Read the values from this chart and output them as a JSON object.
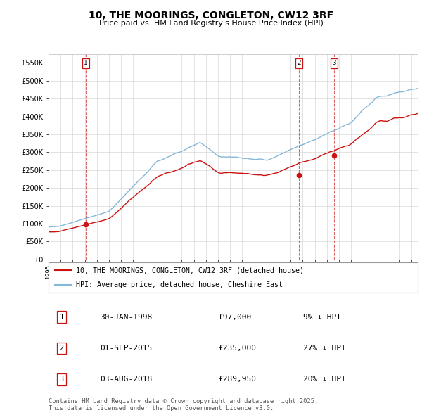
{
  "title": "10, THE MOORINGS, CONGLETON, CW12 3RF",
  "subtitle": "Price paid vs. HM Land Registry's House Price Index (HPI)",
  "ylim": [
    0,
    575000
  ],
  "yticks": [
    0,
    50000,
    100000,
    150000,
    200000,
    250000,
    300000,
    350000,
    400000,
    450000,
    500000,
    550000
  ],
  "ytick_labels": [
    "£0",
    "£50K",
    "£100K",
    "£150K",
    "£200K",
    "£250K",
    "£300K",
    "£350K",
    "£400K",
    "£450K",
    "£500K",
    "£550K"
  ],
  "xlim_start": 1995.0,
  "xlim_end": 2025.5,
  "background_color": "#ffffff",
  "grid_color": "#d8d8d8",
  "line_red_color": "#cc1111",
  "line_blue_color": "#85b8d8",
  "purchases": [
    {
      "num": 1,
      "date": "30-JAN-1998",
      "price": 97000,
      "year": 1998.08,
      "label": "9% ↓ HPI"
    },
    {
      "num": 2,
      "date": "01-SEP-2015",
      "price": 235000,
      "year": 2015.67,
      "label": "27% ↓ HPI"
    },
    {
      "num": 3,
      "date": "03-AUG-2018",
      "price": 289950,
      "year": 2018.58,
      "label": "20% ↓ HPI"
    }
  ],
  "legend_red_label": "10, THE MOORINGS, CONGLETON, CW12 3RF (detached house)",
  "legend_blue_label": "HPI: Average price, detached house, Cheshire East",
  "footer": "Contains HM Land Registry data © Crown copyright and database right 2025.\nThis data is licensed under the Open Government Licence v3.0."
}
